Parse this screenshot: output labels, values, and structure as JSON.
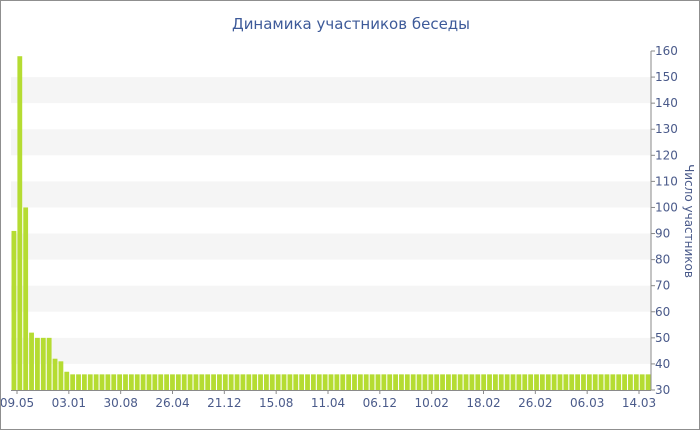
{
  "chart_data": {
    "type": "bar",
    "title": "Динамика участников беседы",
    "ylabel": "Число участников",
    "ylim": [
      30,
      160
    ],
    "yticks": [
      30,
      40,
      50,
      60,
      70,
      80,
      90,
      100,
      110,
      120,
      130,
      140,
      150,
      160
    ],
    "xtick_labels": [
      "09.05",
      "03.01",
      "30.08",
      "26.04",
      "21.12",
      "15.08",
      "11.04",
      "06.12",
      "10.02",
      "18.02",
      "26.02",
      "06.03",
      "14.03"
    ],
    "values": [
      91,
      158,
      100,
      52,
      50,
      50,
      50,
      42,
      41,
      37,
      36,
      36,
      36,
      36,
      36,
      36,
      36,
      36,
      36,
      36,
      36,
      36,
      36,
      36,
      36,
      36,
      36,
      36,
      36,
      36,
      36,
      36,
      36,
      36,
      36,
      36,
      36,
      36,
      36,
      36,
      36,
      36,
      36,
      36,
      36,
      36,
      36,
      36,
      36,
      36,
      36,
      36,
      36,
      36,
      36,
      36,
      36,
      36,
      36,
      36,
      36,
      36,
      36,
      36,
      36,
      36,
      36,
      36,
      36,
      36,
      36,
      36,
      36,
      36,
      36,
      36,
      36,
      36,
      36,
      36,
      36,
      36,
      36,
      36,
      36,
      36,
      36,
      36,
      36,
      36,
      36,
      36,
      36,
      36,
      36,
      36,
      36,
      36,
      36,
      36,
      36,
      36,
      36,
      36,
      36,
      36,
      36,
      36,
      36
    ],
    "grid": true,
    "colors": {
      "bar": "#b5dc32",
      "band": "#f5f5f5",
      "text": "#4a5a8a",
      "title": "#3d5a99",
      "axis": "#8a8a8a"
    }
  }
}
